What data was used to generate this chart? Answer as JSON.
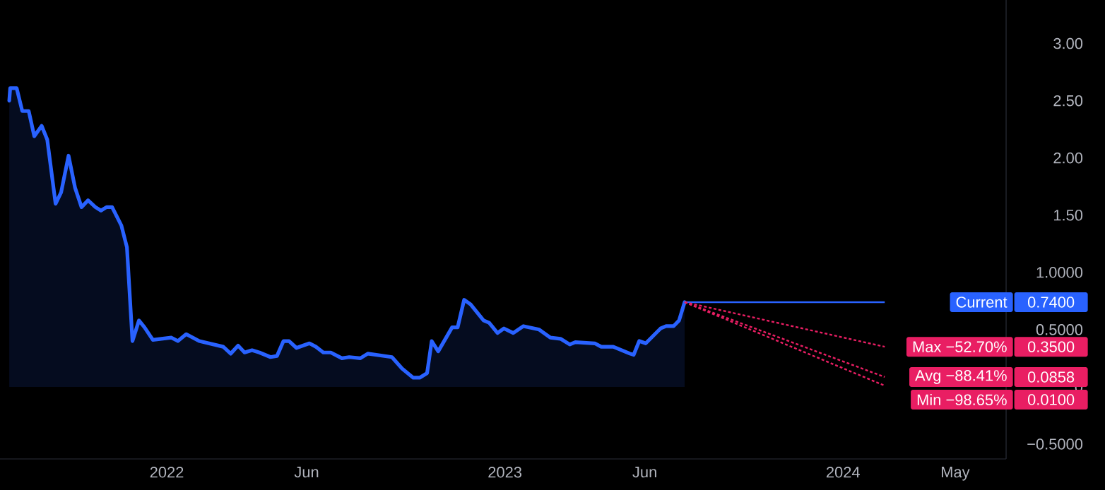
{
  "chart_data": {
    "type": "area",
    "xlim": [
      "2021-07-05",
      "2024-06-25"
    ],
    "ylim": [
      -0.63,
      3.38
    ],
    "xticks": [
      {
        "value": "2022-01-01",
        "label": "2022"
      },
      {
        "value": "2022-06-01",
        "label": "Jun"
      },
      {
        "value": "2023-01-01",
        "label": "2023"
      },
      {
        "value": "2023-06-01",
        "label": "Jun"
      },
      {
        "value": "2024-01-01",
        "label": "2024"
      },
      {
        "value": "2024-05-01",
        "label": "May"
      }
    ],
    "yticks": [
      {
        "value": 3,
        "label": "3.00"
      },
      {
        "value": 2.5,
        "label": "2.50"
      },
      {
        "value": 2,
        "label": "2.00"
      },
      {
        "value": 1.5,
        "label": "1.50"
      },
      {
        "value": 1,
        "label": "1.0000"
      },
      {
        "value": 0.5,
        "label": "0.5000"
      },
      0,
      {
        "value": -0.5,
        "label": "−0.5000"
      }
    ],
    "series": [
      {
        "color": "#2962ff",
        "x": [
          "2021-07-15",
          "2021-07-16",
          "2021-07-23",
          "2021-07-29",
          "2021-08-05",
          "2021-08-11",
          "2021-08-19",
          "2021-08-25",
          "2021-09-03",
          "2021-09-09",
          "2021-09-17",
          "2021-09-24",
          "2021-10-01",
          "2021-10-08",
          "2021-10-16",
          "2021-10-22",
          "2021-10-28",
          "2021-11-03",
          "2021-11-13",
          "2021-11-19",
          "2021-11-25",
          "2021-12-02",
          "2021-12-08",
          "2021-12-17",
          "2022-01-06",
          "2022-01-13",
          "2022-01-22",
          "2022-02-05",
          "2022-03-03",
          "2022-03-11",
          "2022-03-19",
          "2022-03-26",
          "2022-04-03",
          "2022-04-11",
          "2022-04-23",
          "2022-04-30",
          "2022-05-07",
          "2022-05-13",
          "2022-05-21",
          "2022-06-04",
          "2022-06-11",
          "2022-06-19",
          "2022-06-27",
          "2022-07-09",
          "2022-07-17",
          "2022-07-29",
          "2022-08-06",
          "2022-09-01",
          "2022-09-12",
          "2022-09-24",
          "2022-10-01",
          "2022-10-09",
          "2022-10-14",
          "2022-10-21",
          "2022-11-05",
          "2022-11-11",
          "2022-11-18",
          "2022-11-25",
          "2022-12-09",
          "2022-12-15",
          "2022-12-24",
          "2022-12-31",
          "2023-01-10",
          "2023-01-21",
          "2023-02-07",
          "2023-02-19",
          "2023-03-02",
          "2023-03-12",
          "2023-03-18",
          "2023-04-08",
          "2023-04-15",
          "2023-04-28",
          "2023-05-16",
          "2023-05-20",
          "2023-05-26",
          "2023-06-02",
          "2023-06-18",
          "2023-06-24",
          "2023-07-02",
          "2023-07-08",
          "2023-07-14"
        ],
        "values": [
          2.5,
          2.61,
          2.61,
          2.41,
          2.41,
          2.19,
          2.28,
          2.16,
          1.6,
          1.7,
          2.02,
          1.74,
          1.57,
          1.63,
          1.57,
          1.54,
          1.57,
          1.57,
          1.41,
          1.22,
          0.4,
          0.58,
          0.52,
          0.41,
          0.43,
          0.4,
          0.46,
          0.4,
          0.35,
          0.29,
          0.36,
          0.3,
          0.32,
          0.3,
          0.26,
          0.27,
          0.4,
          0.4,
          0.34,
          0.38,
          0.35,
          0.3,
          0.3,
          0.25,
          0.26,
          0.25,
          0.29,
          0.26,
          0.16,
          0.08,
          0.08,
          0.12,
          0.4,
          0.31,
          0.52,
          0.52,
          0.76,
          0.72,
          0.58,
          0.56,
          0.47,
          0.51,
          0.47,
          0.53,
          0.5,
          0.43,
          0.42,
          0.37,
          0.39,
          0.38,
          0.35,
          0.35,
          0.29,
          0.28,
          0.4,
          0.38,
          0.51,
          0.53,
          0.53,
          0.58,
          0.74
        ]
      },
      {
        "type": "line",
        "name": "Current",
        "color": "#2962ff",
        "x": [
          "2023-07-14",
          "2024-02-15"
        ],
        "values": [
          0.74,
          0.74
        ]
      },
      {
        "type": "line",
        "name": "Max −52.70%",
        "color": "#e91e63",
        "line_style": "dashed",
        "x": [
          "2023-07-14",
          "2024-02-15"
        ],
        "values": [
          0.74,
          0.35
        ]
      },
      {
        "type": "line",
        "name": "Avg −88.41%",
        "color": "#e91e63",
        "line_style": "dashed",
        "x": [
          "2023-07-14",
          "2024-02-15"
        ],
        "values": [
          0.74,
          0.0858
        ]
      },
      {
        "type": "line",
        "name": "Min −98.65%",
        "color": "#e91e63",
        "line_style": "dashed",
        "x": [
          "2023-07-14",
          "2024-02-15"
        ],
        "values": [
          0.74,
          0.01
        ]
      }
    ],
    "legend": "right",
    "annotations": [
      "0.7400",
      "0.3500",
      "0.0858",
      "0.0100"
    ]
  }
}
